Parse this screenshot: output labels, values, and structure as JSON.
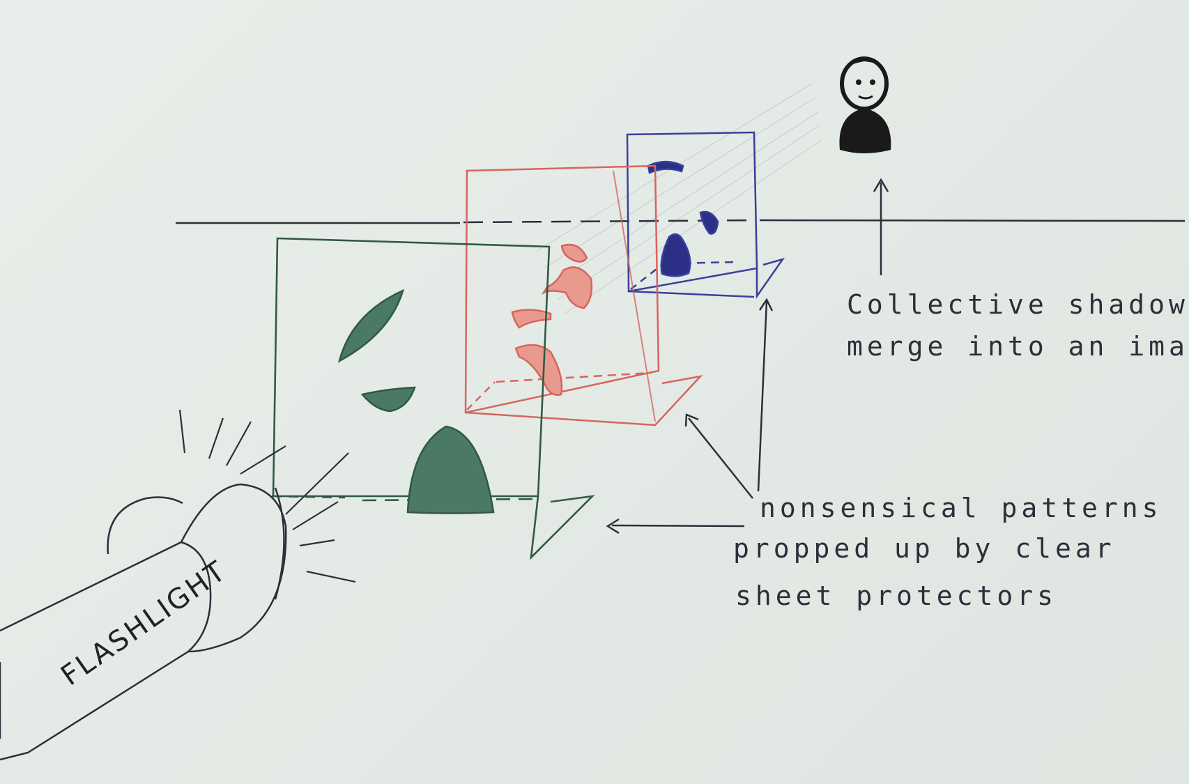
{
  "labels": {
    "shadows_line1": "Collective shadows",
    "shadows_line2": "merge into an image",
    "patterns_line1": "nonsensical patterns",
    "patterns_line2": "propped up by clear",
    "patterns_line3": "sheet protectors",
    "flashlight": "FLASHLIGHT"
  },
  "colors": {
    "ink": "#2c2f3a",
    "green_sheet": "#2f5a44",
    "red_sheet": "#d8645e",
    "blue_sheet": "#3b3f9a",
    "shadow_figure": "#1a1a1a"
  },
  "icons": {
    "light_source": "flashlight-icon",
    "result": "silhouette-portrait-icon"
  }
}
